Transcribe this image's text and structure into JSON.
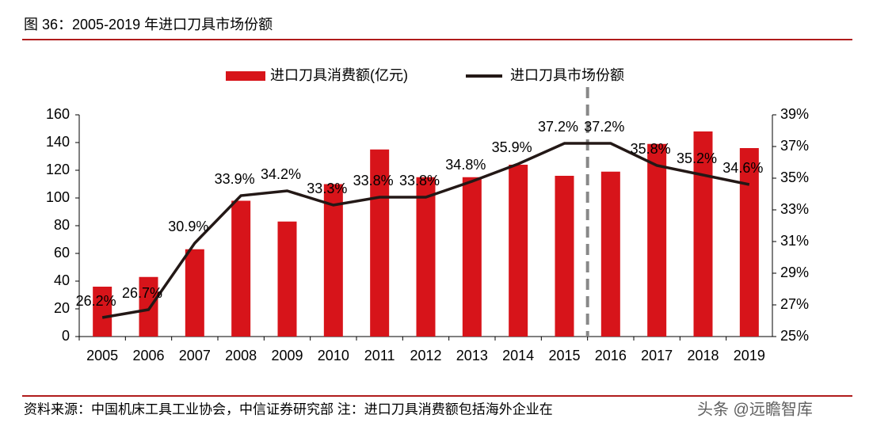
{
  "title": "图 36：2005-2019 年进口刀具市场份额",
  "chart_data": {
    "type": "bar-line",
    "categories": [
      "2005",
      "2006",
      "2007",
      "2008",
      "2009",
      "2010",
      "2011",
      "2012",
      "2013",
      "2014",
      "2015",
      "2016",
      "2017",
      "2018",
      "2019"
    ],
    "series": [
      {
        "name": "进口刀具消费额(亿元)",
        "type": "bar",
        "color": "#d7141a",
        "values": [
          36,
          43,
          63,
          98,
          83,
          110,
          135,
          115,
          115,
          124,
          116,
          119,
          139,
          148,
          136
        ]
      },
      {
        "name": "进口刀具市场份额",
        "type": "line",
        "axis": "y2",
        "color": "#231816",
        "values": [
          26.2,
          26.7,
          30.9,
          33.9,
          34.2,
          33.3,
          33.8,
          33.8,
          34.8,
          35.9,
          37.2,
          37.2,
          35.8,
          35.2,
          34.6
        ],
        "value_labels": [
          "26.2%",
          "26.7%",
          "30.9%",
          "33.9%",
          "34.2%",
          "33.3%",
          "33.8%",
          "33.8%",
          "34.8%",
          "35.9%",
          "37.2%",
          "37.2%",
          "35.8%",
          "35.2%",
          "34.6%"
        ]
      }
    ],
    "ylim": [
      0,
      160
    ],
    "yticks": [
      0,
      20,
      40,
      60,
      80,
      100,
      120,
      140,
      160
    ],
    "y2lim": [
      25,
      39
    ],
    "y2ticks": [
      {
        "value": 25,
        "label": "25%"
      },
      {
        "value": 27,
        "label": "27%"
      },
      {
        "value": 29,
        "label": "29%"
      },
      {
        "value": 31,
        "label": "31%"
      },
      {
        "value": 33,
        "label": "33%"
      },
      {
        "value": 35,
        "label": "35%"
      },
      {
        "value": 37,
        "label": "37%"
      },
      {
        "value": 39,
        "label": "39%"
      }
    ],
    "grid": false
  },
  "footer": "资料来源：中国机床工具工业协会，中信证券研究部 注：进口刀具消费额包括海外企业在",
  "watermark": "头条 @远瞻智库"
}
